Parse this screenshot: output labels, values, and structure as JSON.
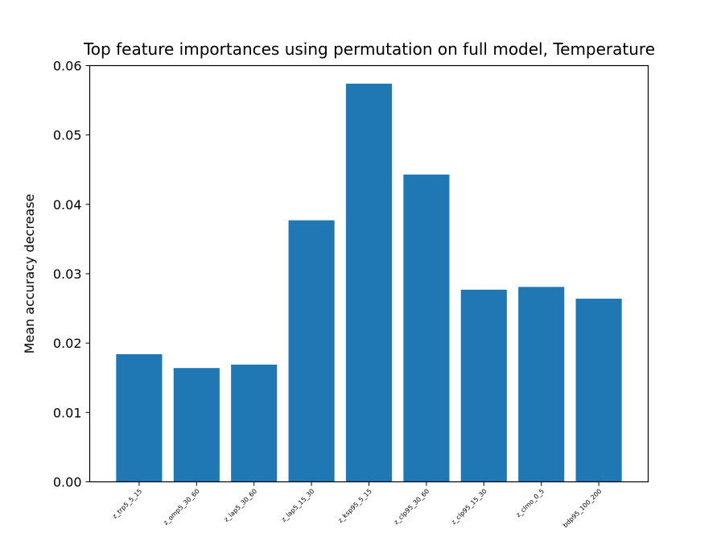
{
  "chart_data": {
    "type": "bar",
    "title": "Top feature importances using permutation on full model, Temperature",
    "xlabel": "",
    "ylabel": "Mean accuracy decrease",
    "categories": [
      "z_trp5_5_15",
      "z_omp5_30_60",
      "z_lap5_30_60",
      "z_lap5_15_30",
      "z_ksp95_5_15",
      "z_clp95_30_60",
      "z_clp95_15_30",
      "z_clmo_0_5",
      "bdp95_100_200"
    ],
    "values": [
      0.0184,
      0.0164,
      0.0169,
      0.0377,
      0.0574,
      0.0443,
      0.0277,
      0.0281,
      0.0264
    ],
    "ylim": [
      0,
      0.06
    ],
    "yticks": [
      "0.00",
      "0.01",
      "0.02",
      "0.03",
      "0.04",
      "0.05",
      "0.06"
    ],
    "grid": false,
    "bar_color": "#1f77b4"
  }
}
